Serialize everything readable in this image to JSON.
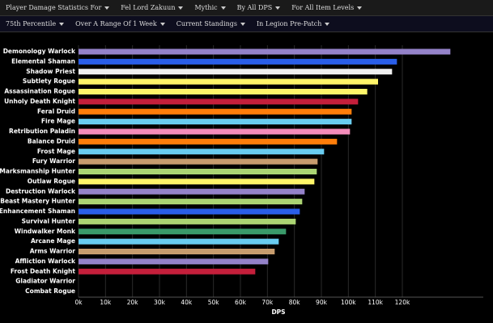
{
  "menu": {
    "row1": [
      "Player Damage Statistics For",
      "Fel Lord Zakuun",
      "Mythic",
      "By All DPS",
      "For All Item Levels"
    ],
    "row2": [
      "75th Percentile",
      "Over A Range Of 1 Week",
      "Current Standings",
      "In Legion Pre-Patch"
    ]
  },
  "chart_data": {
    "type": "hbar",
    "x_label": "DPS",
    "categories": [
      "Demonology Warlock",
      "Elemental Shaman",
      "Shadow Priest",
      "Subtlety Rogue",
      "Assassination Rogue",
      "Unholy Death Knight",
      "Feral Druid",
      "Fire Mage",
      "Retribution Paladin",
      "Balance Druid",
      "Frost Mage",
      "Fury Warrior",
      "Marksmanship Hunter",
      "Outlaw Rogue",
      "Destruction Warlock",
      "Beast Mastery Hunter",
      "Enhancement Shaman",
      "Survival Hunter",
      "Windwalker Monk",
      "Arcane Mage",
      "Arms Warrior",
      "Affliction Warlock",
      "Frost Death Knight",
      "Gladiator Warrior",
      "Combat Rogue"
    ],
    "values": [
      137800,
      118000,
      116200,
      111000,
      107000,
      103600,
      101200,
      101200,
      100600,
      95800,
      91000,
      88600,
      88300,
      87400,
      83800,
      82900,
      82000,
      80500,
      76900,
      74200,
      72700,
      70300,
      65500,
      null,
      null
    ],
    "colors": [
      "#9482c9",
      "#2a5ee8",
      "#f0f0f0",
      "#fff569",
      "#fff569",
      "#c41f3b",
      "#ff7d0a",
      "#69ccf0",
      "#f58cba",
      "#ff7d0a",
      "#69ccf0",
      "#c79c6e",
      "#abd473",
      "#fff569",
      "#9482c9",
      "#abd473",
      "#2a5ee8",
      "#abd473",
      "#3a9a6a",
      "#69ccf0",
      "#c79c6e",
      "#9482c9",
      "#c41f3b",
      "#c79c6e",
      "#fff569"
    ],
    "xlim": [
      0,
      150000
    ],
    "xticks": [
      {
        "value": 0,
        "label": "0k"
      },
      {
        "value": 10000,
        "label": "10k"
      },
      {
        "value": 20000,
        "label": "20k"
      },
      {
        "value": 30000,
        "label": "30k"
      },
      {
        "value": 40000,
        "label": "40k"
      },
      {
        "value": 50000,
        "label": "50k"
      },
      {
        "value": 60000,
        "label": "60k"
      },
      {
        "value": 70000,
        "label": "70k"
      },
      {
        "value": 80000,
        "label": "80k"
      },
      {
        "value": 90000,
        "label": "90k"
      },
      {
        "value": 100000,
        "label": "100k"
      },
      {
        "value": 110000,
        "label": "110k"
      },
      {
        "value": 120000,
        "label": "120k"
      }
    ],
    "grid": true
  }
}
